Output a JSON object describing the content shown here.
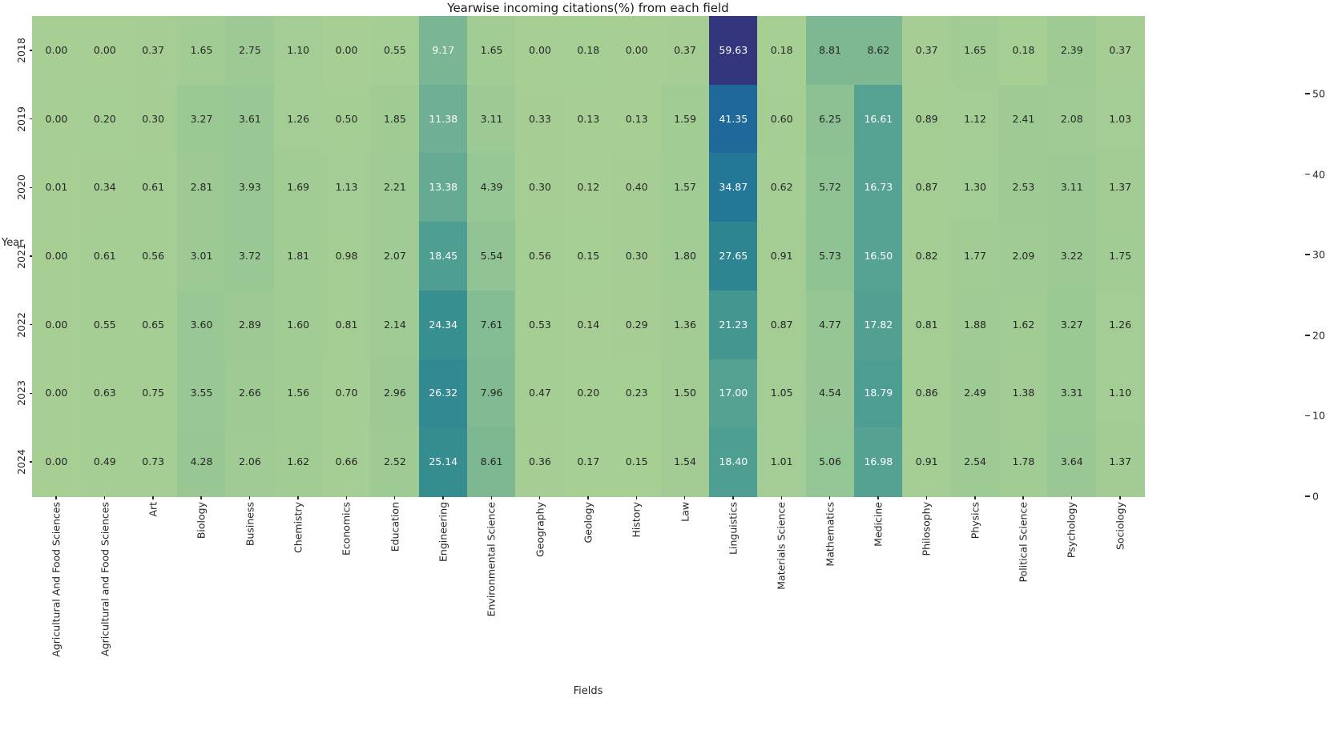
{
  "chart_data": {
    "type": "heatmap",
    "title": "Yearwise incoming citations(%) from each field",
    "xlabel": "Fields",
    "ylabel": "Year",
    "rows": [
      "2018",
      "2019",
      "2020",
      "2021",
      "2022",
      "2023",
      "2024"
    ],
    "columns": [
      "Agricultural And Food Sciences",
      "Agricultural and Food Sciences",
      "Art",
      "Biology",
      "Business",
      "Chemistry",
      "Economics",
      "Education",
      "Engineering",
      "Environmental Science",
      "Geography",
      "Geology",
      "History",
      "Law",
      "Linguistics",
      "Materials Science",
      "Mathematics",
      "Medicine",
      "Philosophy",
      "Physics",
      "Political Science",
      "Psychology",
      "Sociology"
    ],
    "values": [
      [
        0.0,
        0.0,
        0.37,
        1.65,
        2.75,
        1.1,
        0.0,
        0.55,
        9.17,
        1.65,
        0.0,
        0.18,
        0.0,
        0.37,
        59.63,
        0.18,
        8.81,
        8.62,
        0.37,
        1.65,
        0.18,
        2.39,
        0.37
      ],
      [
        0.0,
        0.2,
        0.3,
        3.27,
        3.61,
        1.26,
        0.5,
        1.85,
        11.38,
        3.11,
        0.33,
        0.13,
        0.13,
        1.59,
        41.35,
        0.6,
        6.25,
        16.61,
        0.89,
        1.12,
        2.41,
        2.08,
        1.03
      ],
      [
        0.01,
        0.34,
        0.61,
        2.81,
        3.93,
        1.69,
        1.13,
        2.21,
        13.38,
        4.39,
        0.3,
        0.12,
        0.4,
        1.57,
        34.87,
        0.62,
        5.72,
        16.73,
        0.87,
        1.3,
        2.53,
        3.11,
        1.37
      ],
      [
        0.0,
        0.61,
        0.56,
        3.01,
        3.72,
        1.81,
        0.98,
        2.07,
        18.45,
        5.54,
        0.56,
        0.15,
        0.3,
        1.8,
        27.65,
        0.91,
        5.73,
        16.5,
        0.82,
        1.77,
        2.09,
        3.22,
        1.75
      ],
      [
        0.0,
        0.55,
        0.65,
        3.6,
        2.89,
        1.6,
        0.81,
        2.14,
        24.34,
        7.61,
        0.53,
        0.14,
        0.29,
        1.36,
        21.23,
        0.87,
        4.77,
        17.82,
        0.81,
        1.88,
        1.62,
        3.27,
        1.26
      ],
      [
        0.0,
        0.63,
        0.75,
        3.55,
        2.66,
        1.56,
        0.7,
        2.96,
        26.32,
        7.96,
        0.47,
        0.2,
        0.23,
        1.5,
        17.0,
        1.05,
        4.54,
        18.79,
        0.86,
        2.49,
        1.38,
        3.31,
        1.1
      ],
      [
        0.0,
        0.49,
        0.73,
        4.28,
        2.06,
        1.62,
        0.66,
        2.52,
        25.14,
        8.61,
        0.36,
        0.17,
        0.15,
        1.54,
        18.4,
        1.01,
        5.06,
        16.98,
        0.91,
        2.54,
        1.78,
        3.64,
        1.37
      ]
    ],
    "vmin": 0,
    "vmax": 59.63,
    "annot_decimals": 2,
    "colorbar_ticks": [
      0,
      10,
      20,
      30,
      40,
      50
    ],
    "legend_position": "right",
    "grid": false,
    "colors": {
      "background": "#ffffff",
      "annot_dark": "#262626",
      "annot_light": "#ffffff",
      "colormap_name": "crest",
      "scale_stops": [
        [
          0.0,
          "#a7cf94"
        ],
        [
          0.08,
          "#96c694"
        ],
        [
          0.155,
          "#7ab693"
        ],
        [
          0.225,
          "#65ab94"
        ],
        [
          0.31,
          "#4e9e92"
        ],
        [
          0.41,
          "#388f90"
        ],
        [
          0.465,
          "#2d8591"
        ],
        [
          0.585,
          "#237898"
        ],
        [
          0.7,
          "#1f679a"
        ],
        [
          0.8,
          "#25568f"
        ],
        [
          0.9,
          "#2c407e"
        ],
        [
          1.0,
          "#33367d"
        ]
      ]
    }
  }
}
